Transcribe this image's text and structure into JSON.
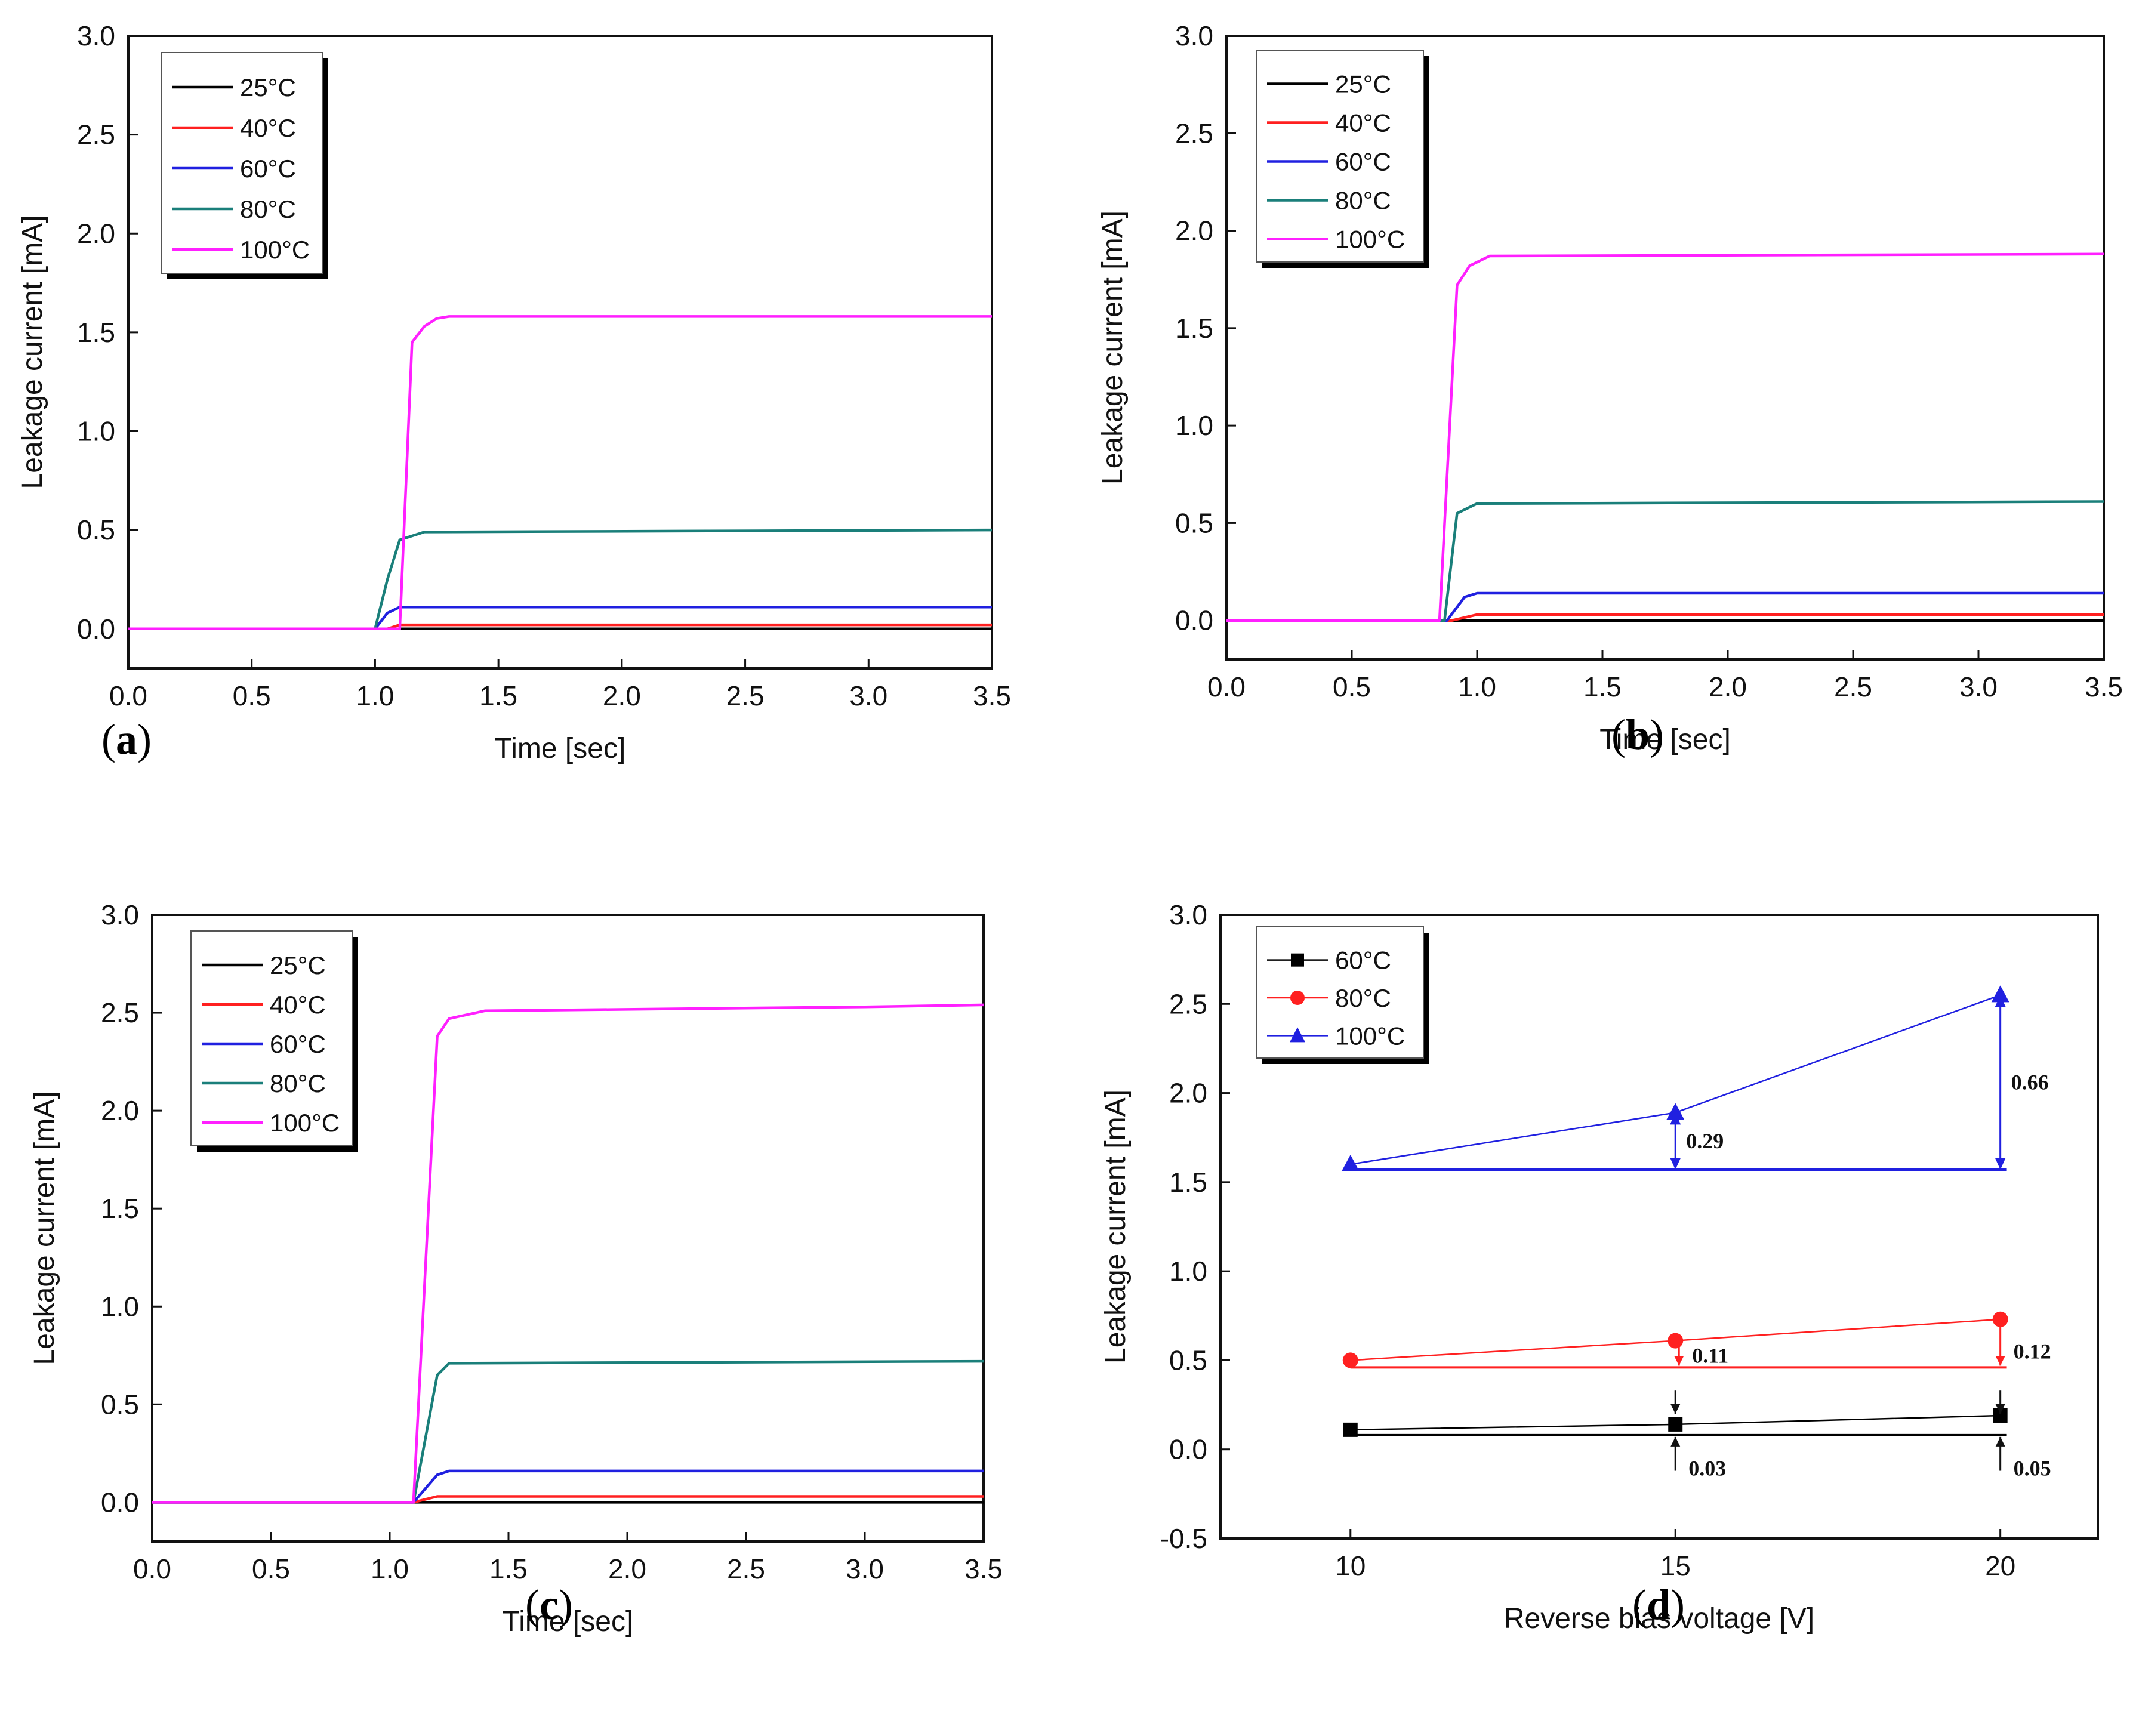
{
  "chart_data": [
    {
      "panel": "a",
      "type": "line",
      "caption": "a",
      "xlabel": "Time [sec]",
      "ylabel": "Leakage current [mA]",
      "xlim": [
        0,
        3.5
      ],
      "ylim": [
        -0.2,
        3.0
      ],
      "xticks": [
        "0.0",
        "0.5",
        "1.0",
        "1.5",
        "2.0",
        "2.5",
        "3.0",
        "3.5"
      ],
      "yticks": [
        "0.0",
        "0.5",
        "1.0",
        "1.5",
        "2.0",
        "2.5",
        "3.0"
      ],
      "legend_position": "top-left",
      "series": [
        {
          "name": "25°C",
          "color": "#000000",
          "x": [
            0,
            1.1,
            3.5
          ],
          "y": [
            0,
            0,
            0
          ]
        },
        {
          "name": "40°C",
          "color": "#ff2020",
          "x": [
            0,
            1.05,
            1.1,
            3.5
          ],
          "y": [
            0,
            0,
            0.02,
            0.02
          ]
        },
        {
          "name": "60°C",
          "color": "#2020e0",
          "x": [
            0,
            1.0,
            1.05,
            1.1,
            3.5
          ],
          "y": [
            0,
            0,
            0.08,
            0.11,
            0.11
          ]
        },
        {
          "name": "80°C",
          "color": "#1a7f7a",
          "x": [
            0,
            1.0,
            1.05,
            1.1,
            1.2,
            3.5
          ],
          "y": [
            0,
            0,
            0.25,
            0.45,
            0.49,
            0.5
          ]
        },
        {
          "name": "100°C",
          "color": "#ff20ff",
          "x": [
            0,
            1.1,
            1.15,
            1.2,
            1.25,
            1.3,
            3.5
          ],
          "y": [
            0,
            0,
            1.45,
            1.53,
            1.57,
            1.58,
            1.58
          ]
        }
      ]
    },
    {
      "panel": "b",
      "type": "line",
      "caption": "b",
      "xlabel": "Time [sec]",
      "ylabel": "Leakage current [mA]",
      "xlim": [
        0,
        3.5
      ],
      "ylim": [
        -0.2,
        3.0
      ],
      "xticks": [
        "0.0",
        "0.5",
        "1.0",
        "1.5",
        "2.0",
        "2.5",
        "3.0",
        "3.5"
      ],
      "yticks": [
        "0.0",
        "0.5",
        "1.0",
        "1.5",
        "2.0",
        "2.5",
        "3.0"
      ],
      "legend_position": "top-left",
      "series": [
        {
          "name": "25°C",
          "color": "#000000",
          "x": [
            0,
            1.0,
            3.5
          ],
          "y": [
            0,
            0,
            0
          ]
        },
        {
          "name": "40°C",
          "color": "#ff2020",
          "x": [
            0,
            0.9,
            1.0,
            3.5
          ],
          "y": [
            0,
            0,
            0.03,
            0.03
          ]
        },
        {
          "name": "60°C",
          "color": "#2020e0",
          "x": [
            0,
            0.88,
            0.95,
            1.0,
            3.5
          ],
          "y": [
            0,
            0,
            0.12,
            0.14,
            0.14
          ]
        },
        {
          "name": "80°C",
          "color": "#1a7f7a",
          "x": [
            0,
            0.87,
            0.92,
            1.0,
            3.5
          ],
          "y": [
            0,
            0,
            0.55,
            0.6,
            0.61
          ]
        },
        {
          "name": "100°C",
          "color": "#ff20ff",
          "x": [
            0,
            0.85,
            0.92,
            0.97,
            1.05,
            3.5
          ],
          "y": [
            0,
            0,
            1.72,
            1.82,
            1.87,
            1.88
          ]
        }
      ]
    },
    {
      "panel": "c",
      "type": "line",
      "caption": "c",
      "xlabel": "Time [sec]",
      "ylabel": "Leakage current [mA]",
      "xlim": [
        0,
        3.5
      ],
      "ylim": [
        -0.2,
        3.0
      ],
      "xticks": [
        "0.0",
        "0.5",
        "1.0",
        "1.5",
        "2.0",
        "2.5",
        "3.0",
        "3.5"
      ],
      "yticks": [
        "0.0",
        "0.5",
        "1.0",
        "1.5",
        "2.0",
        "2.5",
        "3.0"
      ],
      "legend_position": "top-left",
      "series": [
        {
          "name": "25°C",
          "color": "#000000",
          "x": [
            0,
            1.15,
            3.5
          ],
          "y": [
            0,
            0,
            0
          ]
        },
        {
          "name": "40°C",
          "color": "#ff2020",
          "x": [
            0,
            1.1,
            1.2,
            3.5
          ],
          "y": [
            0,
            0,
            0.03,
            0.03
          ]
        },
        {
          "name": "60°C",
          "color": "#2020e0",
          "x": [
            0,
            1.1,
            1.2,
            1.25,
            3.5
          ],
          "y": [
            0,
            0,
            0.14,
            0.16,
            0.16
          ]
        },
        {
          "name": "80°C",
          "color": "#1a7f7a",
          "x": [
            0,
            1.1,
            1.2,
            1.25,
            3.5
          ],
          "y": [
            0,
            0,
            0.65,
            0.71,
            0.72
          ]
        },
        {
          "name": "100°C",
          "color": "#ff20ff",
          "x": [
            0,
            1.1,
            1.2,
            1.25,
            1.4,
            3.0,
            3.5
          ],
          "y": [
            0,
            0,
            2.38,
            2.47,
            2.51,
            2.53,
            2.54
          ]
        }
      ]
    },
    {
      "panel": "d",
      "type": "scatter",
      "caption": "d",
      "xlabel": "Reverse bias voltage [V]",
      "ylabel": "Leakage current [mA]",
      "xlim": [
        8,
        21.5
      ],
      "ylim": [
        -0.5,
        3.0
      ],
      "xticks": [
        "10",
        "15",
        "20"
      ],
      "yticks": [
        "-0.5",
        "0.0",
        "0.5",
        "1.0",
        "1.5",
        "2.0",
        "2.5",
        "3.0"
      ],
      "legend_position": "top-left",
      "series": [
        {
          "name": "60°C",
          "color": "#000000",
          "marker": "square",
          "x": [
            10,
            15,
            20
          ],
          "y": [
            0.11,
            0.14,
            0.19
          ],
          "baseline": 0.08
        },
        {
          "name": "80°C",
          "color": "#ff2020",
          "marker": "circle",
          "x": [
            10,
            15,
            20
          ],
          "y": [
            0.5,
            0.61,
            0.73
          ],
          "baseline": 0.46
        },
        {
          "name": "100°C",
          "color": "#2020e0",
          "marker": "triangle",
          "x": [
            10,
            15,
            20
          ],
          "y": [
            1.6,
            1.89,
            2.55
          ],
          "baseline": 1.57
        }
      ],
      "annotations": [
        "0.29",
        "0.66",
        "0.11",
        "0.12",
        "0.03",
        "0.05"
      ]
    }
  ]
}
